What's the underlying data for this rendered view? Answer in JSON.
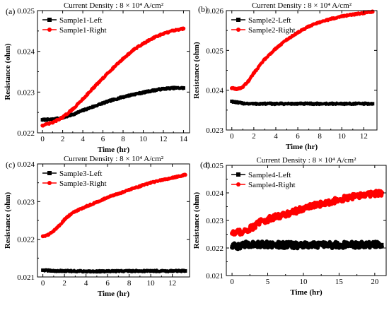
{
  "chart_data": [
    {
      "panel": "(a)",
      "type": "scatter",
      "title": "Current Density : 8 × 10⁴ A/cm²",
      "xlabel": "Time (hr)",
      "ylabel": "Resistance (ohm)",
      "xlim": [
        -0.5,
        14.6
      ],
      "ylim": [
        0.022,
        0.025
      ],
      "xticks": [
        0,
        2,
        4,
        6,
        8,
        10,
        12,
        14
      ],
      "yticks": [
        0.022,
        0.023,
        0.024,
        0.025
      ],
      "legend_position": "top-left",
      "series": [
        {
          "name": "Sample1-Left",
          "color": "#000000",
          "marker": "square",
          "x": [
            0,
            1,
            2,
            3,
            4,
            5,
            6,
            7,
            8,
            9,
            10,
            11,
            12,
            13,
            14
          ],
          "y": [
            0.02232,
            0.02233,
            0.02237,
            0.02245,
            0.02255,
            0.02264,
            0.02273,
            0.02281,
            0.02288,
            0.02294,
            0.02299,
            0.02304,
            0.02308,
            0.0231,
            0.0231
          ]
        },
        {
          "name": "Sample1-Right",
          "color": "#ff0000",
          "marker": "circle",
          "x": [
            0,
            1,
            2,
            3,
            4,
            5,
            6,
            7,
            8,
            9,
            10,
            11,
            12,
            13,
            14
          ],
          "y": [
            0.02218,
            0.02225,
            0.02238,
            0.02258,
            0.02283,
            0.02309,
            0.02334,
            0.02359,
            0.02382,
            0.02403,
            0.02419,
            0.02433,
            0.02443,
            0.02451,
            0.02456
          ]
        }
      ]
    },
    {
      "panel": "(b)",
      "type": "scatter",
      "title": "Current Density : 8 × 10⁴ A/cm²",
      "xlabel": "Time (hr)",
      "ylabel": "Resistance (ohm)",
      "xlim": [
        -0.5,
        13.2
      ],
      "ylim": [
        0.023,
        0.026
      ],
      "xticks": [
        0,
        2,
        4,
        6,
        8,
        10,
        12
      ],
      "yticks": [
        0.023,
        0.024,
        0.025,
        0.026
      ],
      "legend_position": "top-left",
      "series": [
        {
          "name": "Sample2-Left",
          "color": "#000000",
          "marker": "square",
          "x": [
            0,
            0.5,
            1,
            2,
            4,
            6,
            8,
            10,
            12,
            12.8
          ],
          "y": [
            0.02372,
            0.02369,
            0.02367,
            0.02366,
            0.02366,
            0.02366,
            0.02366,
            0.02366,
            0.02366,
            0.02366
          ]
        },
        {
          "name": "Sample2-Right",
          "color": "#ff0000",
          "marker": "circle",
          "x": [
            0,
            0.5,
            1,
            1.5,
            2,
            3,
            4,
            5,
            6,
            7,
            8,
            9,
            10,
            11,
            12,
            12.8
          ],
          "y": [
            0.02405,
            0.02403,
            0.02408,
            0.02423,
            0.02443,
            0.02478,
            0.02505,
            0.02527,
            0.02545,
            0.0256,
            0.02571,
            0.02579,
            0.02586,
            0.0259,
            0.02594,
            0.02597
          ]
        }
      ]
    },
    {
      "panel": "(c)",
      "type": "scatter",
      "title": "Current Density : 8 × 10⁴ A/cm²",
      "xlabel": "Time (hr)",
      "ylabel": "Resistance (ohm)",
      "xlim": [
        -0.5,
        13.6
      ],
      "ylim": [
        0.021,
        0.024
      ],
      "xticks": [
        0,
        2,
        4,
        6,
        8,
        10,
        12
      ],
      "yticks": [
        0.021,
        0.022,
        0.023,
        0.024
      ],
      "legend_position": "top-left",
      "series": [
        {
          "name": "Sample3-Left",
          "color": "#000000",
          "marker": "square",
          "x": [
            0,
            1,
            2,
            4,
            6,
            8,
            10,
            12,
            13.2
          ],
          "y": [
            0.02118,
            0.02116,
            0.02116,
            0.02115,
            0.02115,
            0.02116,
            0.02116,
            0.02116,
            0.02116
          ]
        },
        {
          "name": "Sample3-Right",
          "color": "#ff0000",
          "marker": "circle",
          "x": [
            0,
            0.5,
            1,
            1.5,
            2,
            2.5,
            3,
            4,
            5,
            6,
            7,
            8,
            9,
            10,
            11,
            12,
            13.2
          ],
          "y": [
            0.02208,
            0.02212,
            0.02222,
            0.02236,
            0.02252,
            0.02265,
            0.02274,
            0.02287,
            0.02299,
            0.02311,
            0.02321,
            0.02331,
            0.02341,
            0.0235,
            0.02357,
            0.02363,
            0.02371
          ]
        }
      ]
    },
    {
      "panel": "(d)",
      "type": "scatter",
      "title": "Current Density : 8 × 10⁴ A/cm²",
      "xlabel": "Time (hr)",
      "ylabel": "Resistance (ohm)",
      "xlim": [
        -0.8,
        21.6
      ],
      "ylim": [
        0.021,
        0.025
      ],
      "xticks": [
        0,
        5,
        10,
        15,
        20
      ],
      "yticks": [
        0.021,
        0.022,
        0.023,
        0.024,
        0.025
      ],
      "legend_position": "top-left",
      "series": [
        {
          "name": "Sample4-Left",
          "color": "#000000",
          "marker": "square",
          "x": [
            0,
            1,
            2,
            3,
            5,
            7,
            10,
            13,
            16,
            19,
            21
          ],
          "y": [
            0.02205,
            0.02208,
            0.02212,
            0.02214,
            0.02213,
            0.02211,
            0.0221,
            0.0221,
            0.02211,
            0.02212,
            0.02212
          ]
        },
        {
          "name": "Sample4-Right",
          "color": "#ff0000",
          "marker": "circle",
          "x": [
            0,
            1,
            2,
            3,
            4,
            6,
            8,
            10,
            12,
            14,
            16,
            18,
            20,
            21
          ],
          "y": [
            0.02255,
            0.02258,
            0.02262,
            0.02278,
            0.02295,
            0.02312,
            0.02327,
            0.02343,
            0.02357,
            0.02369,
            0.02381,
            0.02391,
            0.02398,
            0.024
          ]
        }
      ]
    }
  ]
}
